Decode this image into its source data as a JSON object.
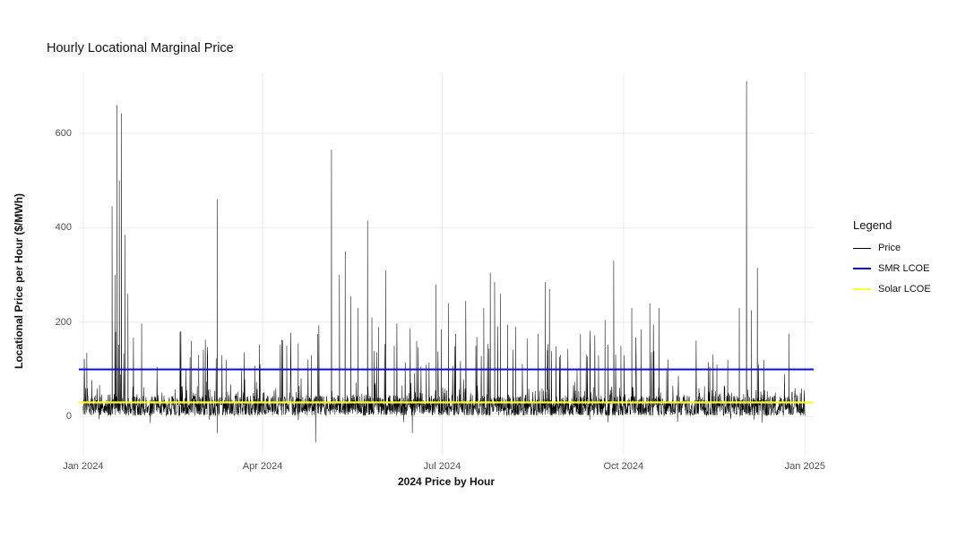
{
  "page": {
    "background_color": "#ffffff"
  },
  "chart_data": {
    "type": "line",
    "title": "Hourly Locational Marginal Price",
    "xlabel": "2024 Price by Hour",
    "ylabel": "Locational Price per Hour ($/MWh)",
    "x_ticks": [
      {
        "label": "Jan 2024",
        "f": 0.0
      },
      {
        "label": "Apr 2024",
        "f": 0.2486
      },
      {
        "label": "Jul 2024",
        "f": 0.4973
      },
      {
        "label": "Oct 2024",
        "f": 0.7486
      },
      {
        "label": "Jan 2025",
        "f": 1.0
      }
    ],
    "y_ticks": [
      0,
      200,
      400,
      600
    ],
    "ylim": [
      -81,
      727
    ],
    "xlim": [
      -0.006,
      1.012
    ],
    "grid": true,
    "grid_color": "#ebebeb",
    "axis_text_color": "#4d4d4d",
    "series": [
      {
        "name": "Price",
        "color": "#000000",
        "kind": "hourly-noise",
        "stroke_width": 0.55,
        "baseline": {
          "min": 0,
          "max": 90,
          "typical": 30
        },
        "spikes": [
          [
            0.005,
            135
          ],
          [
            0.04,
            445
          ],
          [
            0.044,
            300
          ],
          [
            0.047,
            660
          ],
          [
            0.05,
            500
          ],
          [
            0.053,
            642
          ],
          [
            0.058,
            385
          ],
          [
            0.062,
            260
          ],
          [
            0.081,
            197
          ],
          [
            0.15,
            160
          ],
          [
            0.16,
            130
          ],
          [
            0.186,
            460
          ],
          [
            0.198,
            120
          ],
          [
            0.245,
            110
          ],
          [
            0.282,
            150
          ],
          [
            0.298,
            155
          ],
          [
            0.316,
            130
          ],
          [
            0.325,
            175
          ],
          [
            0.344,
            565
          ],
          [
            0.355,
            300
          ],
          [
            0.363,
            350
          ],
          [
            0.371,
            255
          ],
          [
            0.381,
            230
          ],
          [
            0.394,
            415
          ],
          [
            0.4,
            210
          ],
          [
            0.409,
            190
          ],
          [
            0.419,
            310
          ],
          [
            0.431,
            150
          ],
          [
            0.462,
            160
          ],
          [
            0.489,
            280
          ],
          [
            0.496,
            185
          ],
          [
            0.506,
            240
          ],
          [
            0.516,
            175
          ],
          [
            0.53,
            245
          ],
          [
            0.544,
            150
          ],
          [
            0.555,
            230
          ],
          [
            0.564,
            305
          ],
          [
            0.57,
            285
          ],
          [
            0.578,
            260
          ],
          [
            0.588,
            195
          ],
          [
            0.599,
            190
          ],
          [
            0.615,
            165
          ],
          [
            0.63,
            175
          ],
          [
            0.64,
            285
          ],
          [
            0.646,
            270
          ],
          [
            0.661,
            130
          ],
          [
            0.689,
            175
          ],
          [
            0.702,
            145
          ],
          [
            0.714,
            130
          ],
          [
            0.723,
            205
          ],
          [
            0.735,
            330
          ],
          [
            0.745,
            150
          ],
          [
            0.76,
            230
          ],
          [
            0.773,
            185
          ],
          [
            0.785,
            240
          ],
          [
            0.798,
            230
          ],
          [
            0.81,
            120
          ],
          [
            0.866,
            115
          ],
          [
            0.878,
            110
          ],
          [
            0.893,
            120
          ],
          [
            0.909,
            230
          ],
          [
            0.919,
            710
          ],
          [
            0.926,
            225
          ],
          [
            0.934,
            315
          ],
          [
            0.943,
            120
          ],
          [
            0.978,
            175
          ]
        ],
        "dips": [
          [
            0.186,
            -35
          ],
          [
            0.322,
            -55
          ],
          [
            0.456,
            -35
          ]
        ]
      },
      {
        "name": "SMR LCOE",
        "color": "#0b0bdb",
        "kind": "hline",
        "value": 100,
        "stroke_width": 2
      },
      {
        "name": "Solar LCOE",
        "color": "#ffff33",
        "kind": "hline",
        "value": 30,
        "stroke_width": 2.2
      }
    ],
    "legend": {
      "title": "Legend",
      "position": "right",
      "entries": [
        "Price",
        "SMR LCOE",
        "Solar LCOE"
      ]
    }
  }
}
